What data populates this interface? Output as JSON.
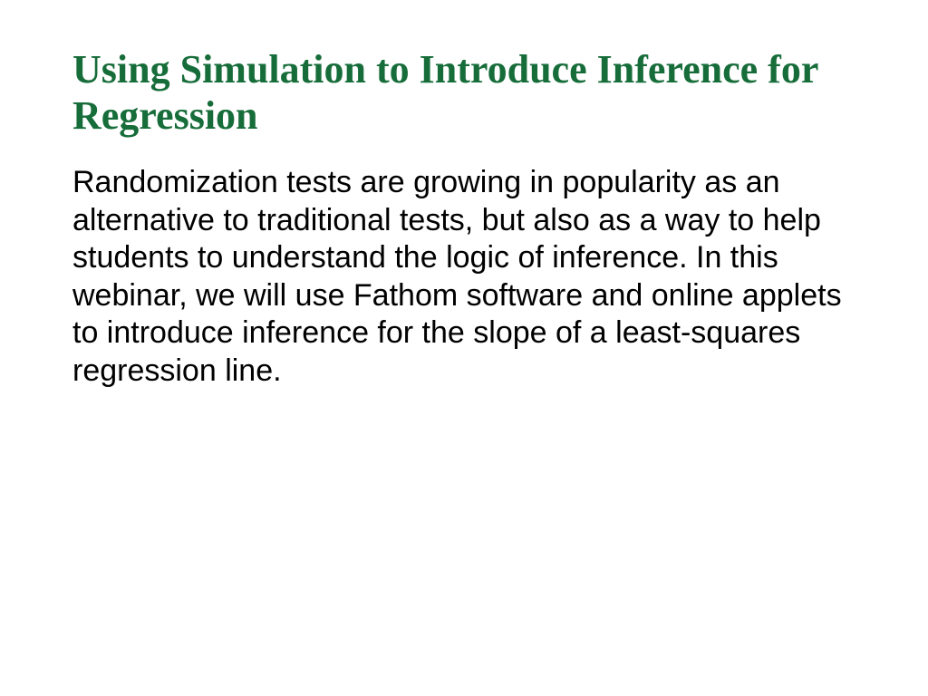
{
  "slide": {
    "title": "Using Simulation to Introduce Inference for Regression",
    "body": "Randomization tests are growing in popularity as an alternative to traditional tests, but also as a way to help students to understand the logic of inference. In this webinar, we will use Fathom software and online applets to introduce inference for the slope of a least-squares regression line.",
    "title_color": "#176d3a",
    "body_color": "#000000",
    "background_color": "#ffffff",
    "title_fontsize": 44,
    "body_fontsize": 34
  }
}
